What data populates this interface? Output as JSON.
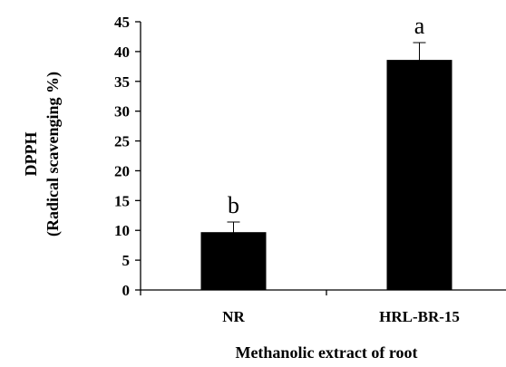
{
  "chart_data": {
    "type": "bar",
    "title": "",
    "ylabel_lines": [
      "DPPH",
      "(Radical scavenging %)"
    ],
    "xlabel": "Methanolic extract of root",
    "categories": [
      "NR",
      "HRL-BR-15"
    ],
    "values": [
      9.7,
      38.6
    ],
    "errors": [
      1.7,
      2.9
    ],
    "significance": [
      "b",
      "a"
    ],
    "ylim": [
      0,
      45
    ],
    "yticks": [
      "0",
      "5",
      "10",
      "15",
      "20",
      "25",
      "30",
      "35",
      "40",
      "45"
    ],
    "grid": false,
    "legend": "none",
    "bar_color": "#000000"
  }
}
